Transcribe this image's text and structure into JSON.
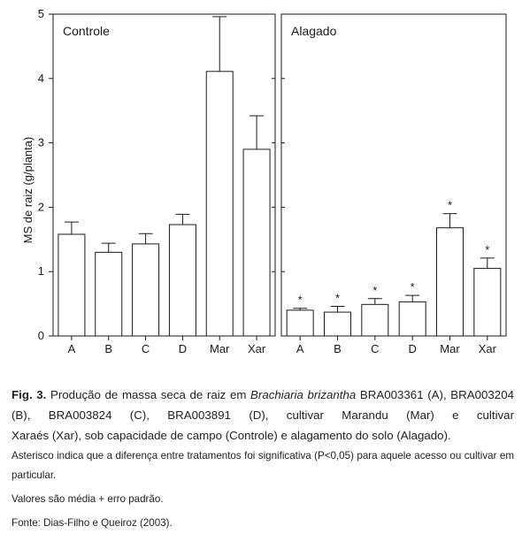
{
  "chart_data": {
    "type": "bar",
    "ylabel": "MS de raiz (g/planta)",
    "ylim": [
      0,
      5
    ],
    "yticks": [
      "0",
      "1",
      "2",
      "3",
      "4",
      "5"
    ],
    "categories": [
      "A",
      "B",
      "C",
      "D",
      "Mar",
      "Xar"
    ],
    "error_bars": "média + erro padrão",
    "panels": [
      {
        "title": "Controle",
        "values": [
          1.58,
          1.3,
          1.43,
          1.73,
          4.11,
          2.9
        ],
        "errors": [
          0.19,
          0.14,
          0.16,
          0.16,
          0.85,
          0.52
        ],
        "markers": [
          "",
          "",
          "",
          "",
          "",
          ""
        ]
      },
      {
        "title": "Alagado",
        "values": [
          0.4,
          0.37,
          0.49,
          0.53,
          1.68,
          1.05
        ],
        "errors": [
          0.03,
          0.09,
          0.09,
          0.1,
          0.22,
          0.16
        ],
        "markers": [
          "*",
          "*",
          "*",
          "*",
          "*",
          "*"
        ]
      }
    ]
  },
  "caption": {
    "fig_label": "Fig. 3.",
    "text_1": " Produção de massa seca de raiz em ",
    "species": "Brachiaria brizantha",
    "text_2": " BRA003361 (A), BRA003204 (B), BRA003824 (C), BRA003891 (D), cultivar Marandu (Mar) e cultivar",
    "text_3": "Xaraés (Xar), sob capacidade de campo (Controle) e alagamento do solo (Alagado).",
    "note": "Asterisco indica que a diferença entre tratamentos foi significativa (P<0,05) para aquele acesso ou cultivar em particular.",
    "values_note": "Valores são média + erro padrão.",
    "source": "Fonte: Dias-Filho e Queiroz (2003)."
  },
  "colors": {
    "bar_fill": "#ffffff",
    "stroke": "#1a1a1a"
  }
}
